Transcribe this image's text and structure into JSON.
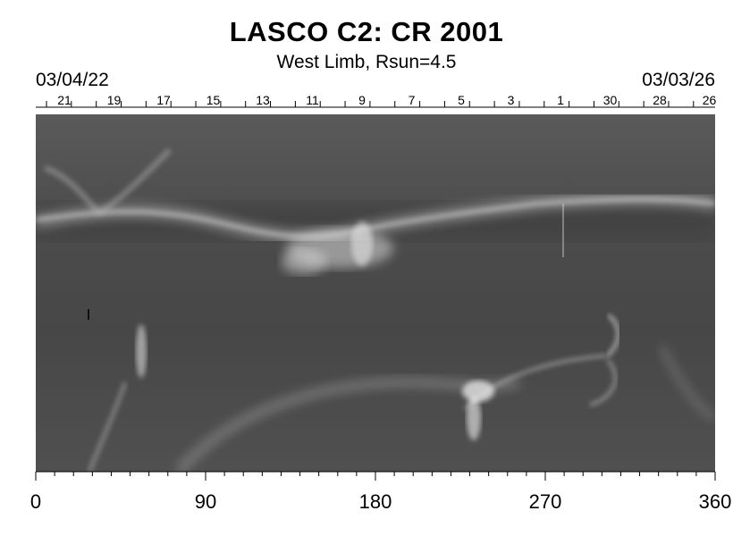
{
  "title": "LASCO C2: CR 2001",
  "subtitle": "West Limb, Rsun=4.5",
  "date_left": "03/04/22",
  "date_right": "03/03/26",
  "top_day_labels": [
    "21",
    "19",
    "17",
    "15",
    "13",
    "11",
    "9",
    "7",
    "5",
    "3",
    "1",
    "30",
    "28",
    "26"
  ],
  "x_axis_labels": [
    "0",
    "90",
    "180",
    "270",
    "360"
  ],
  "colors": {
    "background": "#ffffff",
    "map_base": "#4a4a4a",
    "streamer": "#d8d8d8"
  }
}
